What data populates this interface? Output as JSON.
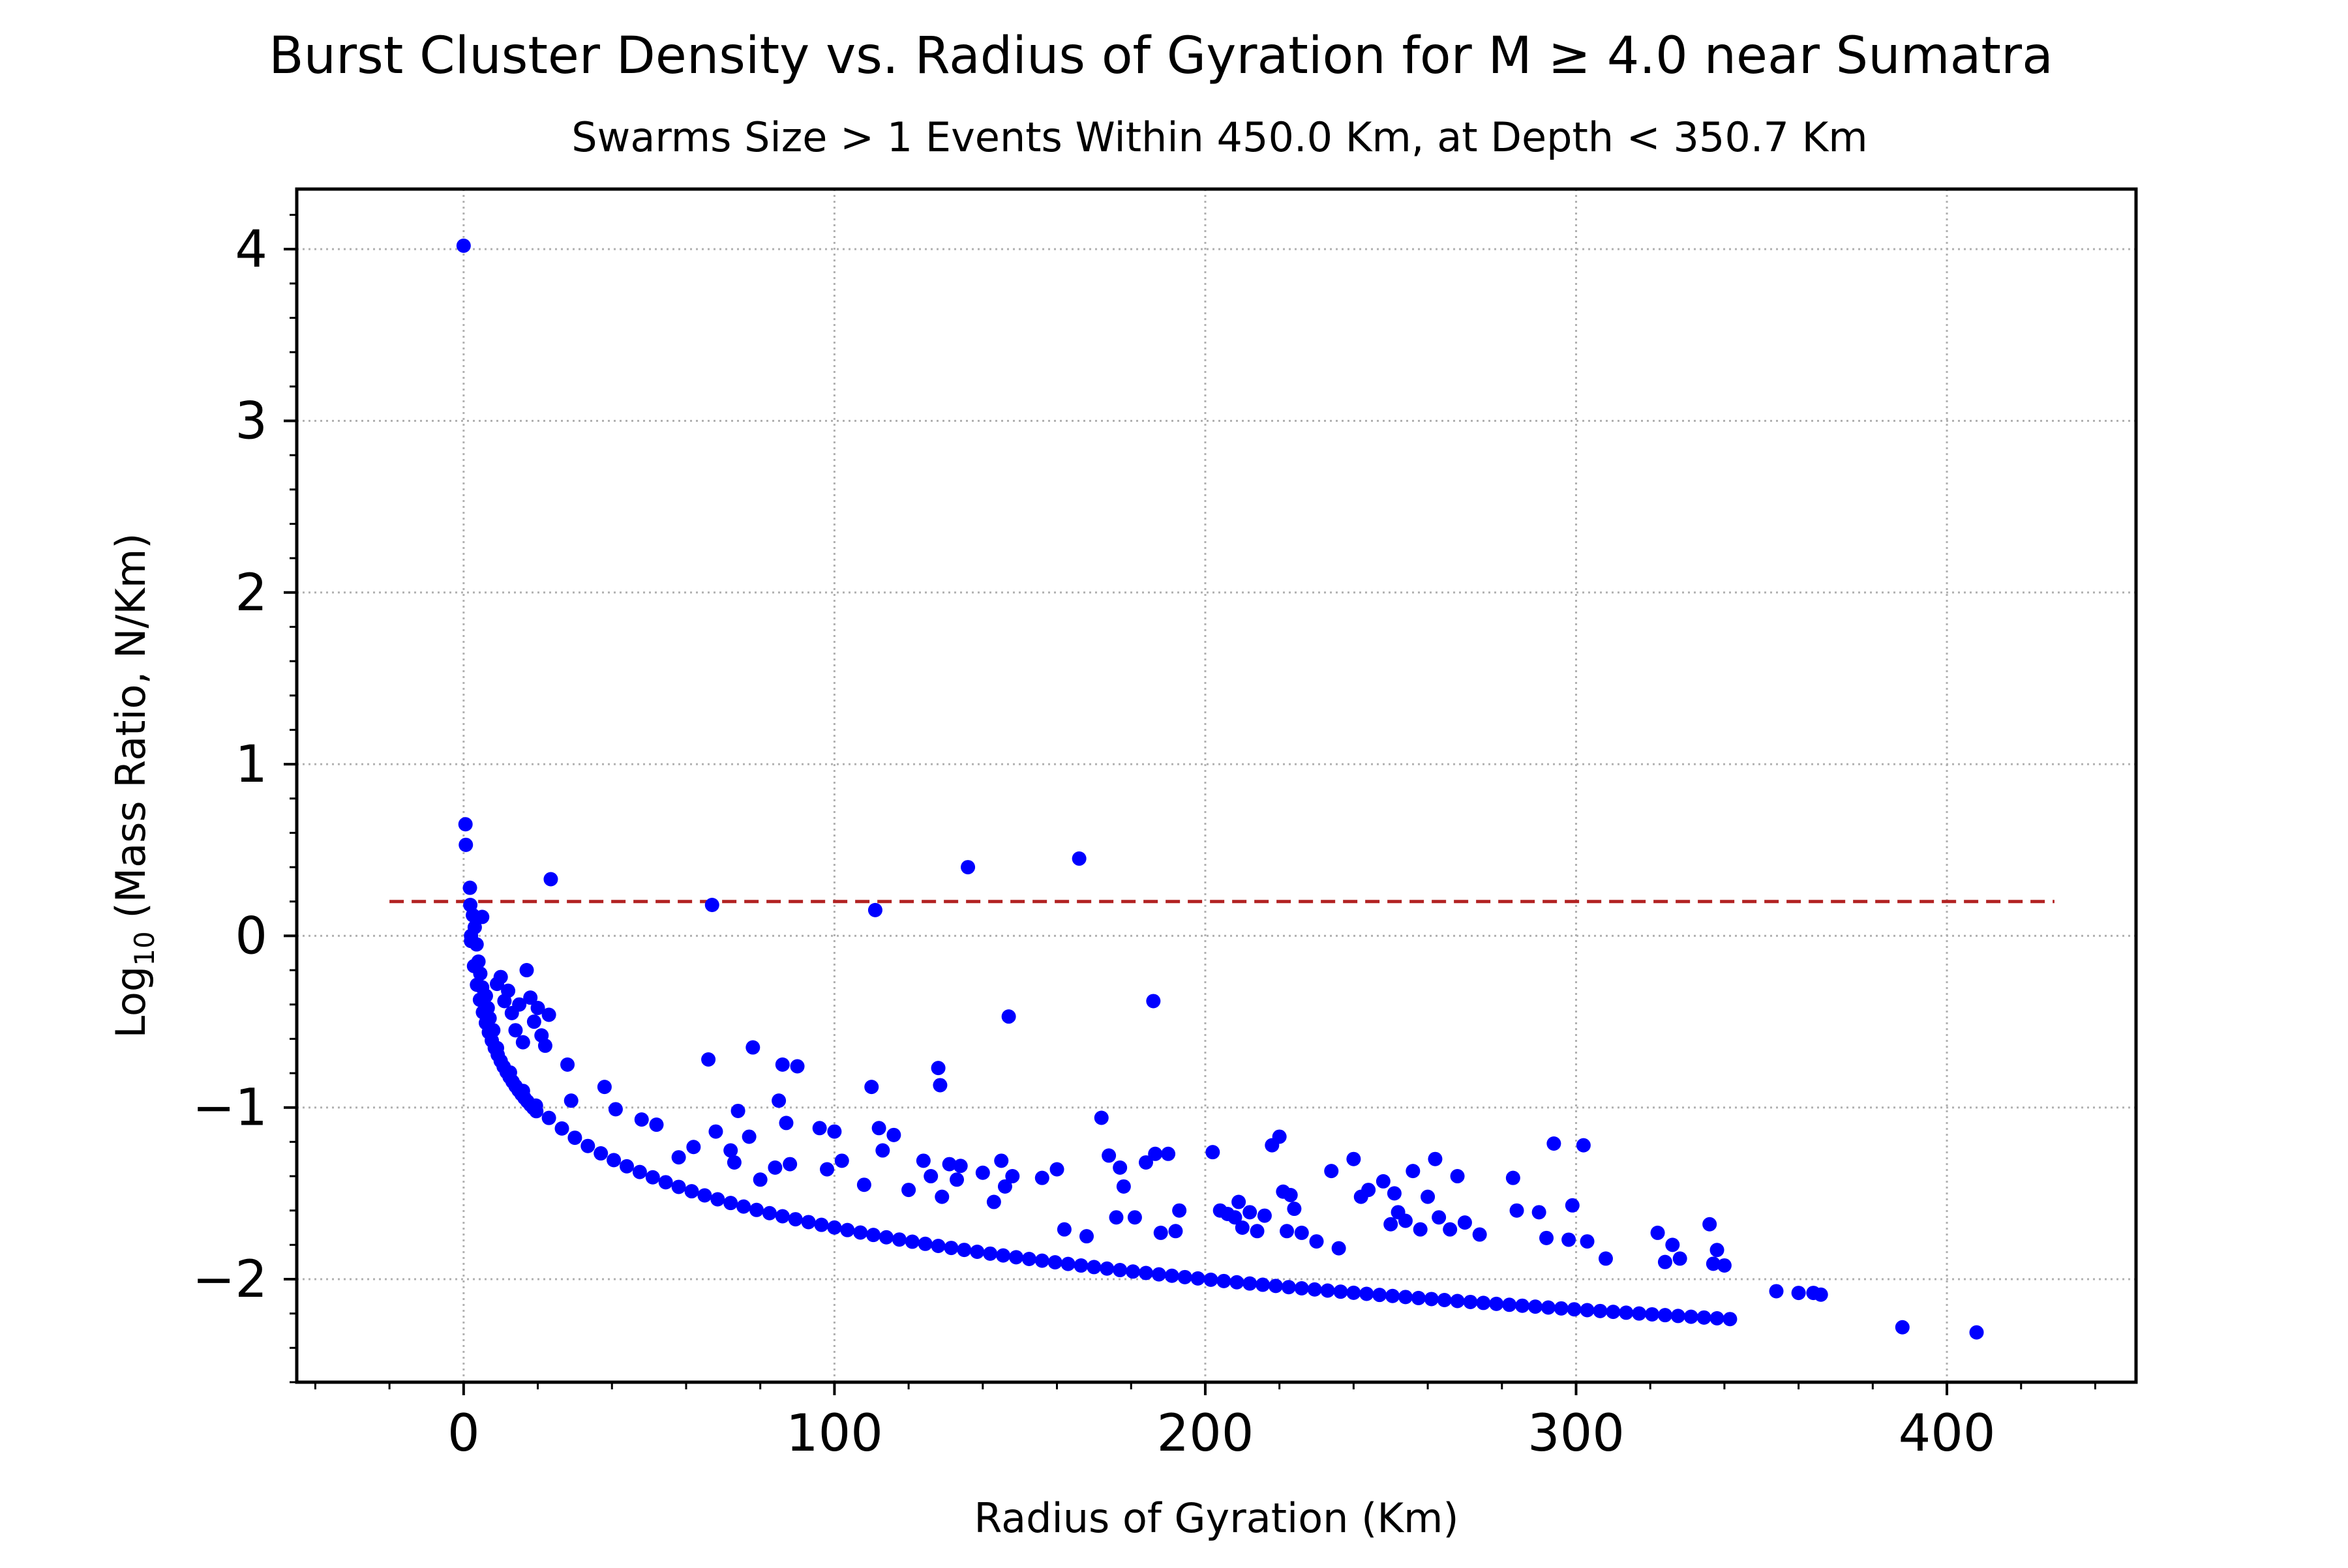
{
  "chart_data": {
    "type": "scatter",
    "title": "Burst Cluster Density vs. Radius of Gyration for M ≥ 4.0 near Sumatra",
    "subtitle": "Swarms Size > 1 Events Within 450.0 Km, at Depth < 350.7 Km",
    "xlabel": "Radius of Gyration (Km)",
    "ylabel_prefix": "Log",
    "ylabel_sub": "10",
    "ylabel_rest": " (Mass Ratio, N/Km)",
    "xlim": [
      -45,
      451
    ],
    "ylim": [
      -2.6,
      4.35
    ],
    "xticks": [
      0,
      100,
      200,
      300,
      400
    ],
    "xtick_labels": [
      "0",
      "100",
      "200",
      "300",
      "400"
    ],
    "yticks": [
      4,
      3,
      2,
      1,
      0,
      -1,
      -2
    ],
    "ytick_labels": [
      "4",
      "3",
      "2",
      "1",
      "0",
      "−1",
      "−2"
    ],
    "grid": true,
    "marker_color": "#0000ff",
    "threshold_line": {
      "y": 0.2,
      "x_range": [
        -20,
        429
      ],
      "color": "#b22222",
      "style": "dashed"
    },
    "curve": {
      "note": "dense lower-envelope band of points following log10(2/r)",
      "x_start": 2,
      "x_end": 343,
      "step": 3.5
    },
    "points": [
      [
        0,
        4.02
      ],
      [
        0.5,
        0.65
      ],
      [
        0.6,
        0.53
      ],
      [
        1.7,
        0.28
      ],
      [
        1.8,
        0.18
      ],
      [
        2.5,
        0.12
      ],
      [
        5,
        0.11
      ],
      [
        3,
        0.05
      ],
      [
        3.5,
        -0.05
      ],
      [
        4,
        -0.15
      ],
      [
        4.5,
        -0.22
      ],
      [
        5,
        -0.3
      ],
      [
        6,
        -0.35
      ],
      [
        6.5,
        -0.42
      ],
      [
        7,
        -0.48
      ],
      [
        8,
        -0.55
      ],
      [
        9,
        -0.28
      ],
      [
        10,
        -0.24
      ],
      [
        11,
        -0.38
      ],
      [
        12,
        -0.32
      ],
      [
        13,
        -0.45
      ],
      [
        14,
        -0.55
      ],
      [
        15,
        -0.4
      ],
      [
        16,
        -0.62
      ],
      [
        17,
        -0.2
      ],
      [
        18,
        -0.36
      ],
      [
        19,
        -0.5
      ],
      [
        20,
        -0.42
      ],
      [
        21,
        -0.58
      ],
      [
        22,
        -0.64
      ],
      [
        23,
        -0.46
      ],
      [
        23.5,
        0.33
      ],
      [
        28,
        -0.75
      ],
      [
        29,
        -0.96
      ],
      [
        38,
        -0.88
      ],
      [
        41,
        -1.01
      ],
      [
        48,
        -1.07
      ],
      [
        52,
        -1.1
      ],
      [
        58,
        -1.29
      ],
      [
        62,
        -1.23
      ],
      [
        66,
        -0.72
      ],
      [
        67,
        0.18
      ],
      [
        68,
        -1.14
      ],
      [
        72,
        -1.25
      ],
      [
        73,
        -1.32
      ],
      [
        74,
        -1.02
      ],
      [
        78,
        -0.65
      ],
      [
        77,
        -1.17
      ],
      [
        80,
        -1.42
      ],
      [
        84,
        -1.35
      ],
      [
        85,
        -0.96
      ],
      [
        86,
        -0.75
      ],
      [
        87,
        -1.09
      ],
      [
        88,
        -1.33
      ],
      [
        90,
        -0.76
      ],
      [
        96,
        -1.12
      ],
      [
        98,
        -1.36
      ],
      [
        100,
        -1.14
      ],
      [
        102,
        -1.31
      ],
      [
        108,
        -1.45
      ],
      [
        110,
        -0.88
      ],
      [
        111,
        0.15
      ],
      [
        112,
        -1.12
      ],
      [
        113,
        -1.25
      ],
      [
        116,
        -1.16
      ],
      [
        120,
        -1.48
      ],
      [
        124,
        -1.31
      ],
      [
        126,
        -1.4
      ],
      [
        128,
        -0.77
      ],
      [
        128.5,
        -0.87
      ],
      [
        129,
        -1.52
      ],
      [
        131,
        -1.33
      ],
      [
        133,
        -1.42
      ],
      [
        134,
        -1.34
      ],
      [
        136,
        0.4
      ],
      [
        140,
        -1.38
      ],
      [
        143,
        -1.55
      ],
      [
        145,
        -1.31
      ],
      [
        146,
        -1.46
      ],
      [
        147,
        -0.47
      ],
      [
        148,
        -1.4
      ],
      [
        156,
        -1.41
      ],
      [
        160,
        -1.36
      ],
      [
        162,
        -1.71
      ],
      [
        166,
        0.45
      ],
      [
        168,
        -1.75
      ],
      [
        172,
        -1.06
      ],
      [
        174,
        -1.28
      ],
      [
        176,
        -1.64
      ],
      [
        177,
        -1.35
      ],
      [
        178,
        -1.46
      ],
      [
        181,
        -1.64
      ],
      [
        184,
        -1.32
      ],
      [
        186,
        -0.38
      ],
      [
        186.5,
        -1.27
      ],
      [
        188,
        -1.73
      ],
      [
        190,
        -1.27
      ],
      [
        192,
        -1.72
      ],
      [
        193,
        -1.6
      ],
      [
        202,
        -1.26
      ],
      [
        204,
        -1.6
      ],
      [
        206,
        -1.62
      ],
      [
        208,
        -1.64
      ],
      [
        209,
        -1.55
      ],
      [
        210,
        -1.7
      ],
      [
        212,
        -1.61
      ],
      [
        214,
        -1.72
      ],
      [
        216,
        -1.63
      ],
      [
        218,
        -1.22
      ],
      [
        220,
        -1.17
      ],
      [
        221,
        -1.49
      ],
      [
        222,
        -1.72
      ],
      [
        223,
        -1.51
      ],
      [
        224,
        -1.59
      ],
      [
        226,
        -1.73
      ],
      [
        230,
        -1.78
      ],
      [
        234,
        -1.37
      ],
      [
        236,
        -1.82
      ],
      [
        240,
        -1.3
      ],
      [
        242,
        -1.52
      ],
      [
        244,
        -1.48
      ],
      [
        248,
        -1.43
      ],
      [
        250,
        -1.68
      ],
      [
        251,
        -1.5
      ],
      [
        252,
        -1.61
      ],
      [
        254,
        -1.66
      ],
      [
        256,
        -1.37
      ],
      [
        258,
        -1.71
      ],
      [
        260,
        -1.52
      ],
      [
        262,
        -1.3
      ],
      [
        263,
        -1.64
      ],
      [
        266,
        -1.71
      ],
      [
        268,
        -1.4
      ],
      [
        270,
        -1.67
      ],
      [
        274,
        -1.74
      ],
      [
        283,
        -1.41
      ],
      [
        284,
        -1.6
      ],
      [
        290,
        -1.61
      ],
      [
        292,
        -1.76
      ],
      [
        294,
        -1.21
      ],
      [
        298,
        -1.77
      ],
      [
        299,
        -1.57
      ],
      [
        302,
        -1.22
      ],
      [
        303,
        -1.78
      ],
      [
        308,
        -1.88
      ],
      [
        322,
        -1.73
      ],
      [
        324,
        -1.9
      ],
      [
        326,
        -1.8
      ],
      [
        328,
        -1.88
      ],
      [
        336,
        -1.68
      ],
      [
        337,
        -1.91
      ],
      [
        338,
        -1.83
      ],
      [
        340,
        -1.92
      ],
      [
        354,
        -2.07
      ],
      [
        360,
        -2.08
      ],
      [
        364,
        -2.08
      ],
      [
        366,
        -2.09
      ],
      [
        388,
        -2.28
      ],
      [
        408,
        -2.31
      ]
    ]
  }
}
